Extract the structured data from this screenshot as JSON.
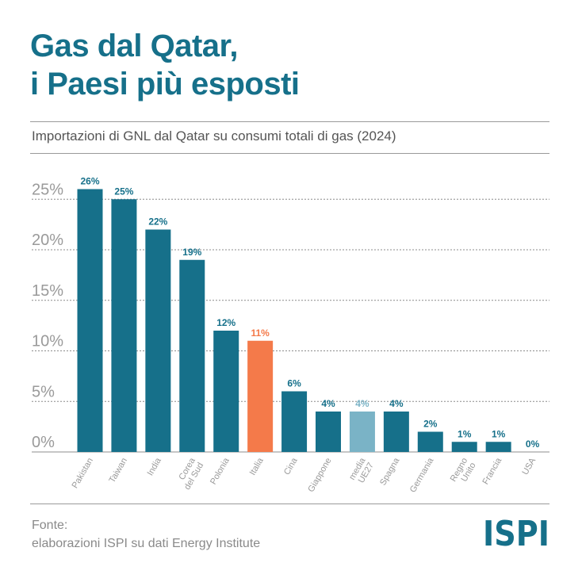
{
  "header": {
    "title_line1": "Gas dal Qatar,",
    "title_line2": "i Paesi più esposti"
  },
  "chart_data": {
    "type": "bar",
    "title": "Importazioni di GNL dal Qatar su consumi totali di gas (2024)",
    "xlabel": "",
    "ylabel": "",
    "ylim": [
      0,
      26
    ],
    "yticks": [
      0,
      5,
      10,
      15,
      20,
      25
    ],
    "ytick_labels": [
      "0%",
      "5%",
      "10%",
      "15%",
      "20%",
      "25%"
    ],
    "categories": [
      [
        "Pakistan"
      ],
      [
        "Taiwan"
      ],
      [
        "India"
      ],
      [
        "Corea",
        "del Sud"
      ],
      [
        "Polonia"
      ],
      [
        "Italia"
      ],
      [
        "Cina"
      ],
      [
        "Giappone"
      ],
      [
        "media",
        "UE27"
      ],
      [
        "Spagna"
      ],
      [
        "Germania"
      ],
      [
        "Regno",
        "Unito"
      ],
      [
        "Francia"
      ],
      [
        "USA"
      ]
    ],
    "values": [
      26,
      25,
      22,
      19,
      12,
      11,
      6,
      4,
      4,
      4,
      2,
      1,
      1,
      0
    ],
    "value_labels": [
      "26%",
      "25%",
      "22%",
      "19%",
      "12%",
      "11%",
      "6%",
      "4%",
      "4%",
      "4%",
      "2%",
      "1%",
      "1%",
      "0%"
    ],
    "bar_styles": [
      "base",
      "base",
      "base",
      "base",
      "base",
      "highlight",
      "base",
      "base",
      "average",
      "base",
      "base",
      "base",
      "base",
      "base"
    ],
    "grid": true
  },
  "colors": {
    "title": "#16708a",
    "base": "#16708a",
    "highlight": "#f47a4a",
    "average": "#7ab3c6",
    "grid": "#8c8c8c",
    "tick_text": "#9a9a9a",
    "base_label": "#16708a",
    "highlight_label": "#f47a4a",
    "average_label": "#7ab3c6"
  },
  "footer": {
    "source_label": "Fonte:",
    "source_text": "elaborazioni ISPI su dati Energy Institute"
  },
  "logo": {
    "text": "ISPI"
  }
}
